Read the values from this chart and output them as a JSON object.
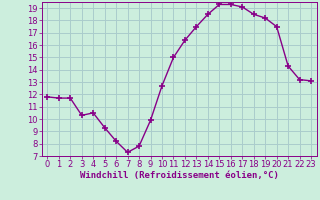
{
  "x": [
    0,
    1,
    2,
    3,
    4,
    5,
    6,
    7,
    8,
    9,
    10,
    11,
    12,
    13,
    14,
    15,
    16,
    17,
    18,
    19,
    20,
    21,
    22,
    23
  ],
  "y": [
    11.8,
    11.7,
    11.7,
    10.3,
    10.5,
    9.3,
    8.2,
    7.3,
    7.8,
    9.9,
    12.7,
    15.0,
    16.4,
    17.5,
    18.5,
    19.3,
    19.3,
    19.1,
    18.5,
    18.2,
    17.5,
    14.3,
    13.2,
    13.1
  ],
  "line_color": "#880088",
  "marker": "+",
  "marker_size": 4,
  "marker_lw": 1.2,
  "line_width": 1.0,
  "bg_color": "#cceedd",
  "grid_color": "#aacccc",
  "xlabel": "Windchill (Refroidissement éolien,°C)",
  "xlabel_color": "#880088",
  "tick_color": "#880088",
  "ylim": [
    7,
    19.5
  ],
  "yticks": [
    7,
    8,
    9,
    10,
    11,
    12,
    13,
    14,
    15,
    16,
    17,
    18,
    19
  ],
  "xlim": [
    -0.5,
    23.5
  ],
  "xticks": [
    0,
    1,
    2,
    3,
    4,
    5,
    6,
    7,
    8,
    9,
    10,
    11,
    12,
    13,
    14,
    15,
    16,
    17,
    18,
    19,
    20,
    21,
    22,
    23
  ],
  "tick_fontsize": 6.0,
  "xlabel_fontsize": 6.5
}
